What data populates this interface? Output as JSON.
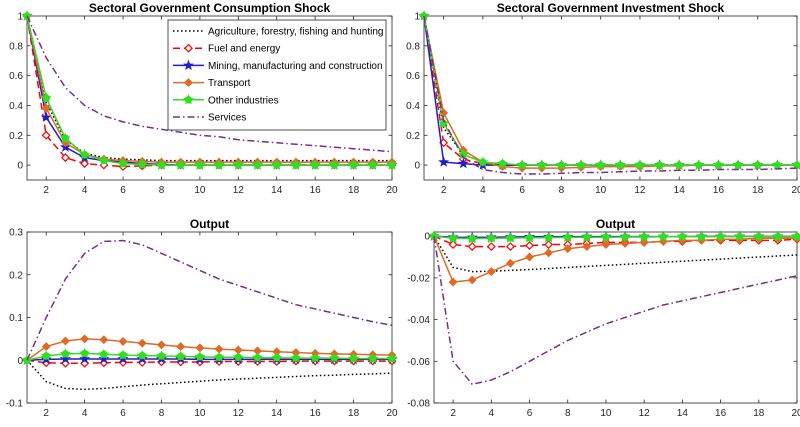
{
  "series_styles": [
    {
      "name": "Agriculture, forestry, fishing and hunting",
      "color": "#000000",
      "dash": "1.5,2.5",
      "marker": "none"
    },
    {
      "name": "Fuel and energy",
      "color": "#ff0000",
      "dash": "7,4",
      "marker": "diamond-open"
    },
    {
      "name": "Mining, manufacturing and construction",
      "color": "#1f1fcc",
      "dash": "",
      "marker": "star"
    },
    {
      "name": "Transport",
      "color": "#e06a25",
      "dash": "",
      "marker": "diamond-filled"
    },
    {
      "name": "Other industries",
      "color": "#33dd22",
      "dash": "",
      "marker": "circle-star"
    },
    {
      "name": "Services",
      "color": "#7d2a8e",
      "dash": "7,3,1.5,3",
      "marker": "none"
    }
  ],
  "chart_data": [
    {
      "type": "line",
      "title": "Sectoral Government Consumption Shock",
      "xlim": [
        1,
        20
      ],
      "ylim": [
        -0.1,
        1
      ],
      "xticks": [
        2,
        4,
        6,
        8,
        10,
        12,
        14,
        16,
        18,
        20
      ],
      "yticks": [
        0,
        0.2,
        0.4,
        0.6,
        0.8,
        1
      ],
      "ytick_labels": [
        "0",
        "0.2",
        "0.4",
        "0.6",
        "0.8",
        "1"
      ],
      "legend": "top-right",
      "x": [
        1,
        2,
        3,
        4,
        5,
        6,
        7,
        8,
        9,
        10,
        11,
        12,
        13,
        14,
        15,
        16,
        17,
        18,
        19,
        20
      ],
      "series": [
        {
          "name": "Agriculture, forestry, fishing and hunting",
          "values": [
            1,
            0.42,
            0.17,
            0.08,
            0.05,
            0.04,
            0.035,
            0.03,
            0.03,
            0.03,
            0.03,
            0.03,
            0.03,
            0.03,
            0.03,
            0.03,
            0.03,
            0.03,
            0.03,
            0.03
          ]
        },
        {
          "name": "Fuel and energy",
          "values": [
            1,
            0.2,
            0.05,
            0.01,
            0.0,
            -0.01,
            -0.005,
            0,
            0,
            0,
            0,
            0,
            0,
            0,
            0,
            0,
            0,
            0,
            0,
            0
          ]
        },
        {
          "name": "Mining, manufacturing and construction",
          "values": [
            1,
            0.32,
            0.12,
            0.05,
            0.03,
            0.02,
            0.01,
            0.005,
            0,
            0,
            0,
            0,
            0,
            0,
            0,
            0,
            0,
            0,
            0,
            0
          ]
        },
        {
          "name": "Transport",
          "values": [
            1,
            0.38,
            0.15,
            0.07,
            0.04,
            0.03,
            0.025,
            0.02,
            0.02,
            0.02,
            0.02,
            0.02,
            0.02,
            0.02,
            0.02,
            0.02,
            0.02,
            0.02,
            0.02,
            0.02
          ]
        },
        {
          "name": "Other industries",
          "values": [
            1,
            0.45,
            0.18,
            0.07,
            0.03,
            0.01,
            0.005,
            0,
            0,
            0,
            0,
            0,
            0,
            0,
            0,
            0,
            0,
            0,
            0,
            0
          ]
        },
        {
          "name": "Services",
          "values": [
            1,
            0.72,
            0.52,
            0.4,
            0.33,
            0.29,
            0.26,
            0.24,
            0.22,
            0.2,
            0.19,
            0.17,
            0.16,
            0.15,
            0.14,
            0.13,
            0.12,
            0.11,
            0.1,
            0.09
          ]
        }
      ]
    },
    {
      "type": "line",
      "title": "Sectoral Government Investment Shock",
      "xlim": [
        1,
        20
      ],
      "ylim": [
        -0.1,
        1
      ],
      "xticks": [
        2,
        4,
        6,
        8,
        10,
        12,
        14,
        16,
        18,
        20
      ],
      "yticks": [
        0,
        0.2,
        0.4,
        0.6,
        0.8,
        1
      ],
      "ytick_labels": [
        "0",
        "0.2",
        "0.4",
        "0.6",
        "0.8",
        "1"
      ],
      "x": [
        1,
        2,
        3,
        4,
        5,
        6,
        7,
        8,
        9,
        10,
        11,
        12,
        13,
        14,
        15,
        16,
        17,
        18,
        19,
        20
      ],
      "series": [
        {
          "name": "Agriculture, forestry, fishing and hunting",
          "values": [
            1,
            0.25,
            0.07,
            0.02,
            0,
            0,
            0,
            0,
            0,
            0,
            0,
            0,
            0,
            0,
            0,
            0,
            0,
            0,
            0,
            0
          ]
        },
        {
          "name": "Fuel and energy",
          "values": [
            1,
            0.15,
            0.04,
            0.01,
            0,
            0,
            0,
            0,
            0,
            0,
            0,
            0,
            0,
            0,
            0,
            0,
            0,
            0,
            0,
            0
          ]
        },
        {
          "name": "Mining, manufacturing and construction",
          "values": [
            1,
            0.02,
            0.01,
            0,
            0,
            0,
            0,
            0,
            0,
            0,
            0,
            0,
            0,
            0,
            0,
            0,
            0,
            0,
            0,
            0
          ]
        },
        {
          "name": "Transport",
          "values": [
            1,
            0.35,
            0.1,
            0.02,
            -0.01,
            -0.02,
            -0.02,
            -0.02,
            -0.015,
            -0.01,
            -0.01,
            -0.01,
            -0.005,
            -0.005,
            0,
            0,
            0,
            0,
            0,
            0
          ]
        },
        {
          "name": "Other industries",
          "values": [
            1,
            0.28,
            0.07,
            0.02,
            0.01,
            0,
            0,
            0,
            0,
            0,
            0,
            0,
            0,
            0,
            0,
            0,
            0,
            0,
            0,
            0
          ]
        },
        {
          "name": "Services",
          "values": [
            1,
            0.3,
            0.05,
            -0.03,
            -0.05,
            -0.06,
            -0.06,
            -0.055,
            -0.05,
            -0.05,
            -0.045,
            -0.04,
            -0.04,
            -0.035,
            -0.035,
            -0.03,
            -0.03,
            -0.03,
            -0.025,
            -0.02
          ]
        }
      ]
    },
    {
      "type": "line",
      "title": "Output",
      "xlim": [
        1,
        20
      ],
      "ylim": [
        -0.1,
        0.3
      ],
      "xticks": [
        2,
        4,
        6,
        8,
        10,
        12,
        14,
        16,
        18,
        20
      ],
      "yticks": [
        -0.1,
        0,
        0.1,
        0.2,
        0.3
      ],
      "ytick_labels": [
        "-0.1",
        "0",
        "0.1",
        "0.2",
        "0.3"
      ],
      "x": [
        1,
        2,
        3,
        4,
        5,
        6,
        7,
        8,
        9,
        10,
        11,
        12,
        13,
        14,
        15,
        16,
        17,
        18,
        19,
        20
      ],
      "series": [
        {
          "name": "Agriculture, forestry, fishing and hunting",
          "values": [
            0,
            -0.05,
            -0.066,
            -0.068,
            -0.066,
            -0.062,
            -0.058,
            -0.055,
            -0.052,
            -0.049,
            -0.046,
            -0.044,
            -0.042,
            -0.04,
            -0.038,
            -0.036,
            -0.035,
            -0.033,
            -0.032,
            -0.03
          ]
        },
        {
          "name": "Fuel and energy",
          "values": [
            0,
            -0.006,
            -0.007,
            -0.007,
            -0.006,
            -0.005,
            -0.005,
            -0.004,
            -0.004,
            -0.004,
            -0.003,
            -0.003,
            -0.003,
            -0.003,
            -0.002,
            -0.002,
            -0.002,
            -0.002,
            -0.002,
            -0.002
          ]
        },
        {
          "name": "Mining, manufacturing and construction",
          "values": [
            0,
            0.002,
            0.003,
            0.003,
            0.003,
            0.003,
            0.003,
            0.003,
            0.003,
            0.002,
            0.002,
            0.002,
            0.002,
            0.002,
            0.002,
            0.002,
            0.002,
            0.002,
            0.002,
            0.002
          ]
        },
        {
          "name": "Transport",
          "values": [
            0,
            0.032,
            0.045,
            0.05,
            0.048,
            0.044,
            0.04,
            0.036,
            0.032,
            0.029,
            0.026,
            0.024,
            0.022,
            0.02,
            0.018,
            0.016,
            0.015,
            0.014,
            0.013,
            0.012
          ]
        },
        {
          "name": "Other industries",
          "values": [
            0,
            0.01,
            0.015,
            0.016,
            0.014,
            0.012,
            0.011,
            0.01,
            0.009,
            0.008,
            0.007,
            0.007,
            0.006,
            0.006,
            0.005,
            0.005,
            0.005,
            0.004,
            0.004,
            0.004
          ]
        },
        {
          "name": "Services",
          "values": [
            0,
            0.1,
            0.19,
            0.25,
            0.278,
            0.28,
            0.27,
            0.25,
            0.23,
            0.21,
            0.19,
            0.175,
            0.16,
            0.145,
            0.13,
            0.12,
            0.11,
            0.1,
            0.09,
            0.082
          ]
        }
      ]
    },
    {
      "type": "line",
      "title": "Output",
      "xlim": [
        1,
        20
      ],
      "ylim": [
        -0.08,
        0.002
      ],
      "xticks": [
        2,
        4,
        6,
        8,
        10,
        12,
        14,
        16,
        18,
        20
      ],
      "yticks": [
        -0.08,
        -0.06,
        -0.04,
        -0.02,
        0
      ],
      "ytick_labels": [
        "-0.08",
        "-0.06",
        "-0.04",
        "-0.02",
        "0"
      ],
      "x": [
        1,
        2,
        3,
        4,
        5,
        6,
        7,
        8,
        9,
        10,
        11,
        12,
        13,
        14,
        15,
        16,
        17,
        18,
        19,
        20
      ],
      "series": [
        {
          "name": "Agriculture, forestry, fishing and hunting",
          "values": [
            0,
            -0.015,
            -0.017,
            -0.0168,
            -0.0164,
            -0.016,
            -0.0155,
            -0.015,
            -0.0145,
            -0.014,
            -0.0135,
            -0.013,
            -0.0125,
            -0.012,
            -0.0115,
            -0.011,
            -0.0105,
            -0.01,
            -0.0095,
            -0.009
          ]
        },
        {
          "name": "Fuel and energy",
          "values": [
            0,
            -0.004,
            -0.005,
            -0.005,
            -0.005,
            -0.0045,
            -0.004,
            -0.004,
            -0.0035,
            -0.003,
            -0.003,
            -0.003,
            -0.0025,
            -0.0025,
            -0.002,
            -0.002,
            -0.002,
            -0.002,
            -0.002,
            -0.0015
          ]
        },
        {
          "name": "Mining, manufacturing and construction",
          "values": [
            0,
            -0.0005,
            -0.0006,
            -0.0005,
            -0.0004,
            -0.0003,
            -0.0003,
            -0.0003,
            -0.0002,
            -0.0002,
            -0.0002,
            -0.0002,
            -0.0002,
            -0.0002,
            -0.0001,
            -0.0001,
            -0.0001,
            -0.0001,
            -0.0001,
            -0.0001
          ]
        },
        {
          "name": "Transport",
          "values": [
            0,
            -0.022,
            -0.021,
            -0.017,
            -0.013,
            -0.01,
            -0.008,
            -0.006,
            -0.005,
            -0.004,
            -0.0035,
            -0.003,
            -0.0025,
            -0.002,
            -0.002,
            -0.0015,
            -0.0015,
            -0.001,
            -0.001,
            -0.001
          ]
        },
        {
          "name": "Other industries",
          "values": [
            0,
            -0.001,
            -0.0012,
            -0.001,
            -0.0009,
            -0.0008,
            -0.0007,
            -0.0006,
            -0.0005,
            -0.0005,
            -0.0004,
            -0.0004,
            -0.0003,
            -0.0003,
            -0.0003,
            -0.0002,
            -0.0002,
            -0.0002,
            -0.0002,
            -0.0002
          ]
        },
        {
          "name": "Services",
          "values": [
            0,
            -0.06,
            -0.071,
            -0.069,
            -0.065,
            -0.06,
            -0.055,
            -0.05,
            -0.046,
            -0.042,
            -0.039,
            -0.036,
            -0.033,
            -0.031,
            -0.029,
            -0.027,
            -0.025,
            -0.023,
            -0.021,
            -0.019
          ]
        }
      ]
    }
  ]
}
